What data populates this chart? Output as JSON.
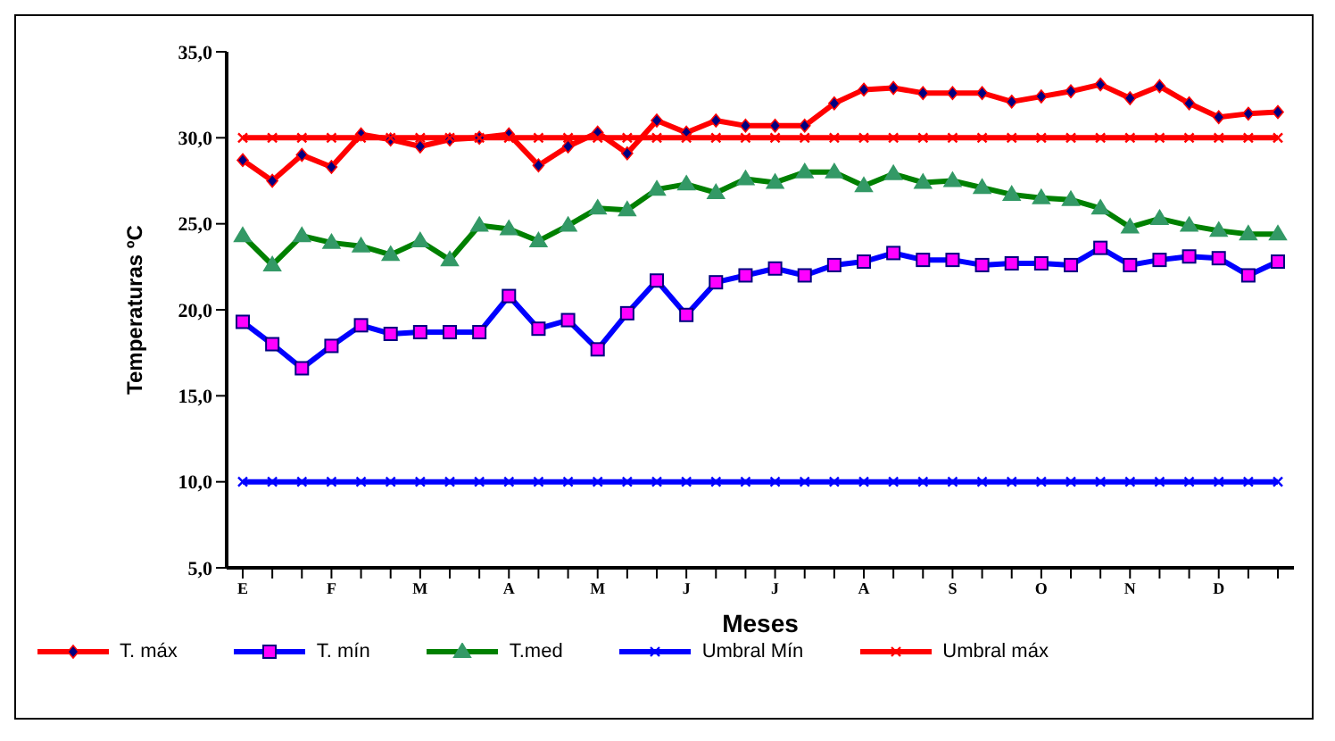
{
  "chart_data": {
    "type": "line",
    "xlabel": "Meses",
    "ylabel": "Temperaturas ºC",
    "categories": [
      "E",
      null,
      null,
      "F",
      null,
      null,
      "M",
      null,
      null,
      "A",
      null,
      null,
      "M",
      null,
      null,
      "J",
      null,
      null,
      "J",
      null,
      null,
      "A",
      null,
      null,
      "S",
      null,
      null,
      "O",
      null,
      null,
      "N",
      null,
      null,
      "D",
      null,
      null
    ],
    "series": [
      {
        "name": "T. máx",
        "color": "#ff0000",
        "marker": "diamond",
        "values": [
          28.7,
          27.5,
          29.0,
          28.3,
          30.2,
          29.9,
          29.5,
          29.9,
          30.0,
          30.2,
          28.4,
          29.5,
          30.3,
          29.1,
          31.0,
          30.3,
          31.0,
          30.7,
          30.7,
          30.7,
          32.0,
          32.8,
          32.9,
          32.6,
          32.6,
          32.6,
          32.1,
          32.4,
          32.7,
          33.1,
          32.3,
          33.0,
          32.0,
          31.2,
          31.4,
          31.5
        ]
      },
      {
        "name": "T. mín",
        "color": "#0000ff",
        "marker": "square",
        "values": [
          19.3,
          18.0,
          16.6,
          17.9,
          19.1,
          18.6,
          18.7,
          18.7,
          18.7,
          20.8,
          18.9,
          19.4,
          17.7,
          19.8,
          21.7,
          19.7,
          21.6,
          22.0,
          22.4,
          22.0,
          22.6,
          22.8,
          23.3,
          22.9,
          22.9,
          22.6,
          22.7,
          22.7,
          22.6,
          23.6,
          22.6,
          22.9,
          23.1,
          23.0,
          22.0,
          22.8
        ]
      },
      {
        "name": "T.med",
        "color": "#008000",
        "marker": "triangle",
        "values": [
          24.3,
          22.6,
          24.3,
          23.9,
          23.7,
          23.2,
          24.0,
          22.9,
          24.9,
          24.7,
          24.0,
          24.9,
          25.9,
          25.8,
          27.0,
          27.3,
          26.8,
          27.6,
          27.4,
          28.0,
          28.0,
          27.2,
          27.9,
          27.4,
          27.5,
          27.1,
          26.7,
          26.5,
          26.4,
          25.9,
          24.8,
          25.3,
          24.9,
          24.6,
          24.4,
          24.4
        ]
      },
      {
        "name": "Umbral Mín",
        "color": "#0000ff",
        "marker": "cross",
        "values": [
          10,
          10,
          10,
          10,
          10,
          10,
          10,
          10,
          10,
          10,
          10,
          10,
          10,
          10,
          10,
          10,
          10,
          10,
          10,
          10,
          10,
          10,
          10,
          10,
          10,
          10,
          10,
          10,
          10,
          10,
          10,
          10,
          10,
          10,
          10,
          10
        ]
      },
      {
        "name": "Umbral máx",
        "color": "#ff0000",
        "marker": "cross",
        "values": [
          30,
          30,
          30,
          30,
          30,
          30,
          30,
          30,
          30,
          30,
          30,
          30,
          30,
          30,
          30,
          30,
          30,
          30,
          30,
          30,
          30,
          30,
          30,
          30,
          30,
          30,
          30,
          30,
          30,
          30,
          30,
          30,
          30,
          30,
          30,
          30
        ]
      }
    ],
    "ylim": [
      5,
      35
    ],
    "yticks": [
      {
        "value": 5,
        "label": "5,0"
      },
      {
        "value": 10,
        "label": "10,0"
      },
      {
        "value": 15,
        "label": "15,0"
      },
      {
        "value": 20,
        "label": "20,0"
      },
      {
        "value": 25,
        "label": "25,0"
      },
      {
        "value": 30,
        "label": "30,0"
      },
      {
        "value": 35,
        "label": "35,0"
      }
    ],
    "grid": false,
    "legend": "bottom"
  }
}
